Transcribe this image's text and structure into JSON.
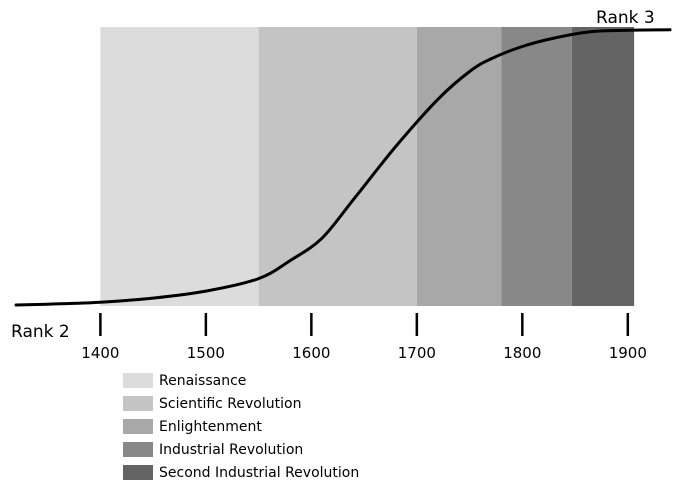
{
  "chart_data": {
    "type": "line",
    "x_ticks": [
      1400,
      1500,
      1600,
      1700,
      1800,
      1900
    ],
    "xlim": [
      1320,
      1940
    ],
    "start_label": "Rank 2",
    "end_label": "Rank 3",
    "periods": [
      {
        "name": "Renaissance",
        "start": 1400,
        "end": 1550,
        "color": "#dcdcdc"
      },
      {
        "name": "Scientific Revolution",
        "start": 1550,
        "end": 1700,
        "color": "#c4c4c4"
      },
      {
        "name": "Enlightenment",
        "start": 1700,
        "end": 1780,
        "color": "#a8a8a8"
      },
      {
        "name": "Industrial Revolution",
        "start": 1780,
        "end": 1847,
        "color": "#888888"
      },
      {
        "name": "Second Industrial Revolution",
        "start": 1847,
        "end": 1906,
        "color": "#646464"
      }
    ],
    "series": [
      {
        "x": [
          1320,
          1350,
          1400,
          1450,
          1500,
          1550,
          1580,
          1610,
          1640,
          1680,
          1720,
          1750,
          1770,
          1800,
          1830,
          1870,
          1940
        ],
        "values": [
          0,
          0.003,
          0.01,
          0.025,
          0.05,
          0.095,
          0.16,
          0.24,
          0.38,
          0.57,
          0.74,
          0.84,
          0.885,
          0.93,
          0.96,
          0.985,
          0.99
        ]
      }
    ],
    "ylim": [
      0,
      1
    ],
    "grid": false,
    "legend_placement": "bottom-left"
  }
}
